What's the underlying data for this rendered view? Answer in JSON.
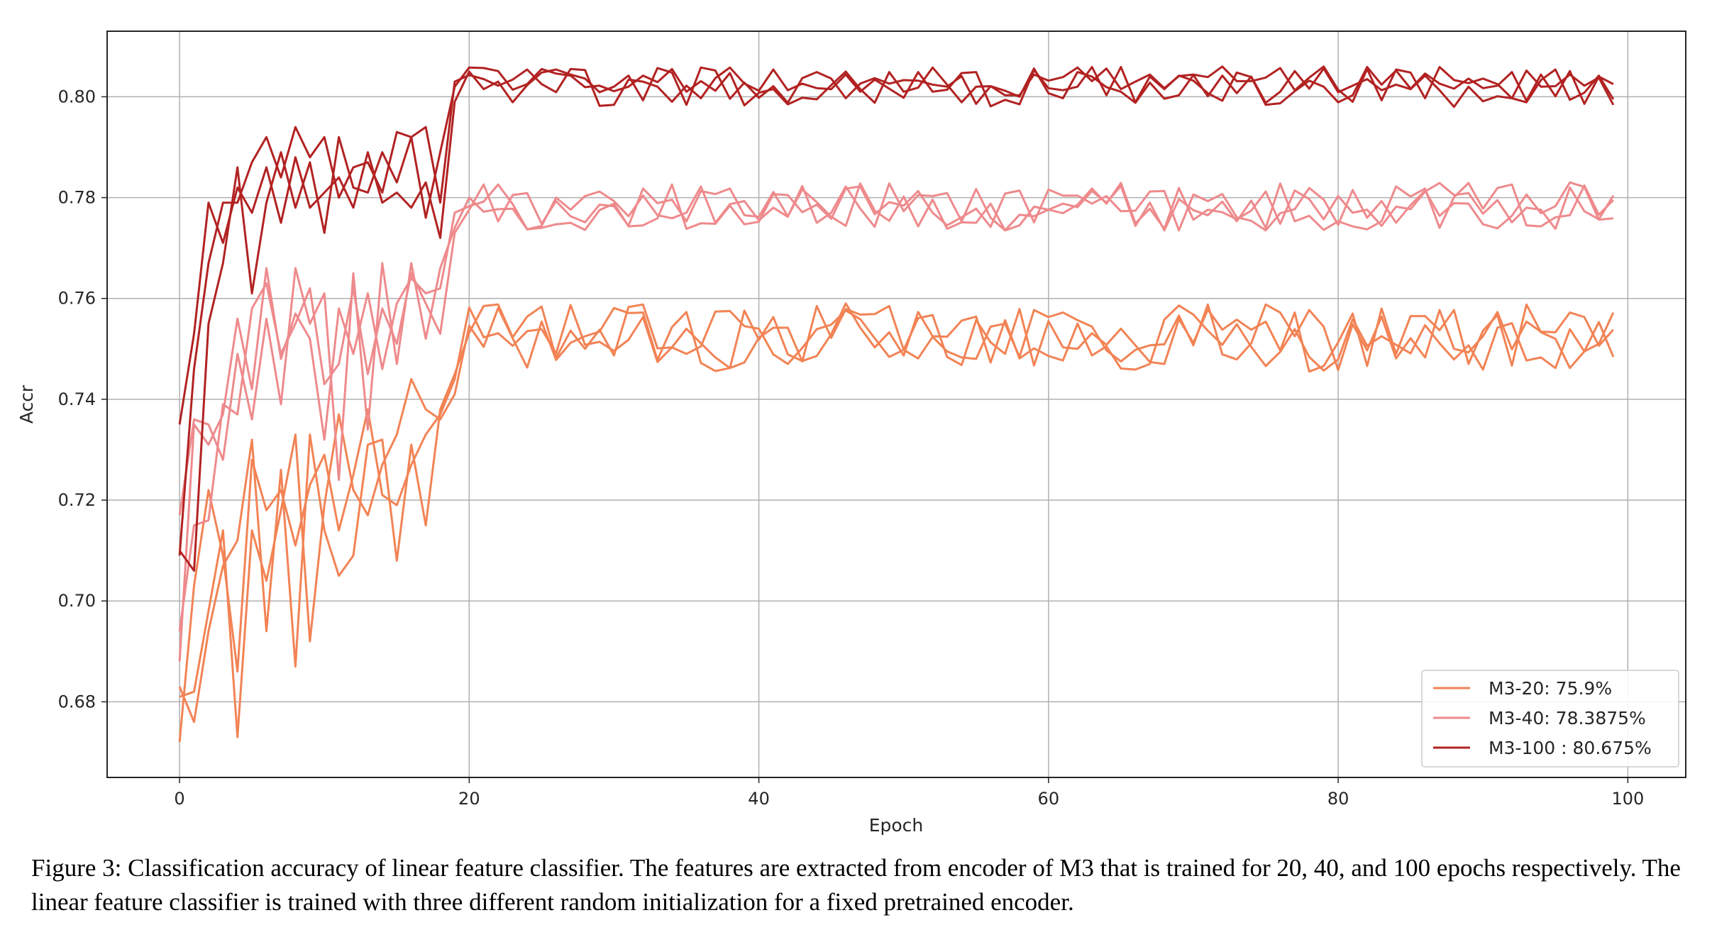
{
  "caption": "Figure 3: Classification accuracy of linear feature classifier. The features are extracted from encoder of M3 that is trained for 20, 40, and 100 epochs respectively. The linear feature classifier is trained with three different random initialization for a fixed pretrained encoder.",
  "chart_data": {
    "type": "line",
    "title": "",
    "xlabel": "Epoch",
    "ylabel": "Accr",
    "xlim": [
      -5,
      104
    ],
    "ylim": [
      0.665,
      0.813
    ],
    "xticks": [
      0,
      20,
      40,
      60,
      80,
      100
    ],
    "xtick_labels": [
      "0",
      "20",
      "40",
      "60",
      "80",
      "100"
    ],
    "yticks": [
      0.68,
      0.7,
      0.72,
      0.74,
      0.76,
      0.78,
      0.8
    ],
    "ytick_labels": [
      "0.68",
      "0.70",
      "0.72",
      "0.74",
      "0.76",
      "0.78",
      "0.80"
    ],
    "grid": true,
    "legend_position": "lower-right",
    "groups": [
      {
        "legend": "M3-20: 75.9%",
        "color": "#f28355",
        "early": [
          [
            0.672,
            0.703,
            0.722,
            0.709,
            0.686,
            0.728,
            0.718,
            0.722,
            0.711,
            0.723,
            0.729,
            0.714,
            0.725,
            0.738,
            0.721,
            0.719,
            0.727,
            0.733,
            0.737,
            0.744
          ],
          [
            0.683,
            0.676,
            0.694,
            0.707,
            0.712,
            0.732,
            0.694,
            0.726,
            0.687,
            0.733,
            0.714,
            0.705,
            0.709,
            0.731,
            0.732,
            0.708,
            0.731,
            0.715,
            0.738,
            0.745
          ],
          [
            0.681,
            0.682,
            0.698,
            0.714,
            0.673,
            0.714,
            0.704,
            0.718,
            0.733,
            0.692,
            0.719,
            0.737,
            0.722,
            0.717,
            0.727,
            0.733,
            0.744,
            0.738,
            0.736,
            0.741
          ]
        ],
        "late_range": [
          0.7455,
          0.759
        ]
      },
      {
        "legend": "M3-40: 78.3875%",
        "color": "#ee8a8c",
        "early": [
          [
            0.688,
            0.735,
            0.731,
            0.737,
            0.756,
            0.742,
            0.766,
            0.748,
            0.757,
            0.752,
            0.732,
            0.758,
            0.749,
            0.761,
            0.746,
            0.759,
            0.764,
            0.761,
            0.762,
            0.777
          ],
          [
            0.694,
            0.715,
            0.716,
            0.739,
            0.737,
            0.758,
            0.763,
            0.749,
            0.755,
            0.762,
            0.743,
            0.747,
            0.762,
            0.745,
            0.758,
            0.751,
            0.765,
            0.759,
            0.753,
            0.773
          ],
          [
            0.717,
            0.736,
            0.735,
            0.728,
            0.749,
            0.736,
            0.756,
            0.739,
            0.766,
            0.755,
            0.761,
            0.724,
            0.765,
            0.734,
            0.767,
            0.747,
            0.767,
            0.752,
            0.766,
            0.774
          ]
        ],
        "late_range": [
          0.7735,
          0.783
        ]
      },
      {
        "legend": "M3-100 : 80.675%",
        "color": "#b22222",
        "early": [
          [
            0.735,
            0.753,
            0.779,
            0.771,
            0.782,
            0.777,
            0.786,
            0.775,
            0.788,
            0.778,
            0.781,
            0.784,
            0.778,
            0.789,
            0.779,
            0.781,
            0.778,
            0.783,
            0.772,
            0.799
          ],
          [
            0.71,
            0.706,
            0.755,
            0.767,
            0.786,
            0.761,
            0.779,
            0.789,
            0.778,
            0.787,
            0.773,
            0.792,
            0.782,
            0.781,
            0.789,
            0.783,
            0.792,
            0.776,
            0.789,
            0.802
          ],
          [
            0.709,
            0.746,
            0.767,
            0.779,
            0.779,
            0.787,
            0.792,
            0.784,
            0.794,
            0.788,
            0.792,
            0.78,
            0.786,
            0.787,
            0.781,
            0.793,
            0.792,
            0.794,
            0.779,
            0.803
          ]
        ],
        "late_range": [
          0.798,
          0.806
        ]
      }
    ]
  }
}
